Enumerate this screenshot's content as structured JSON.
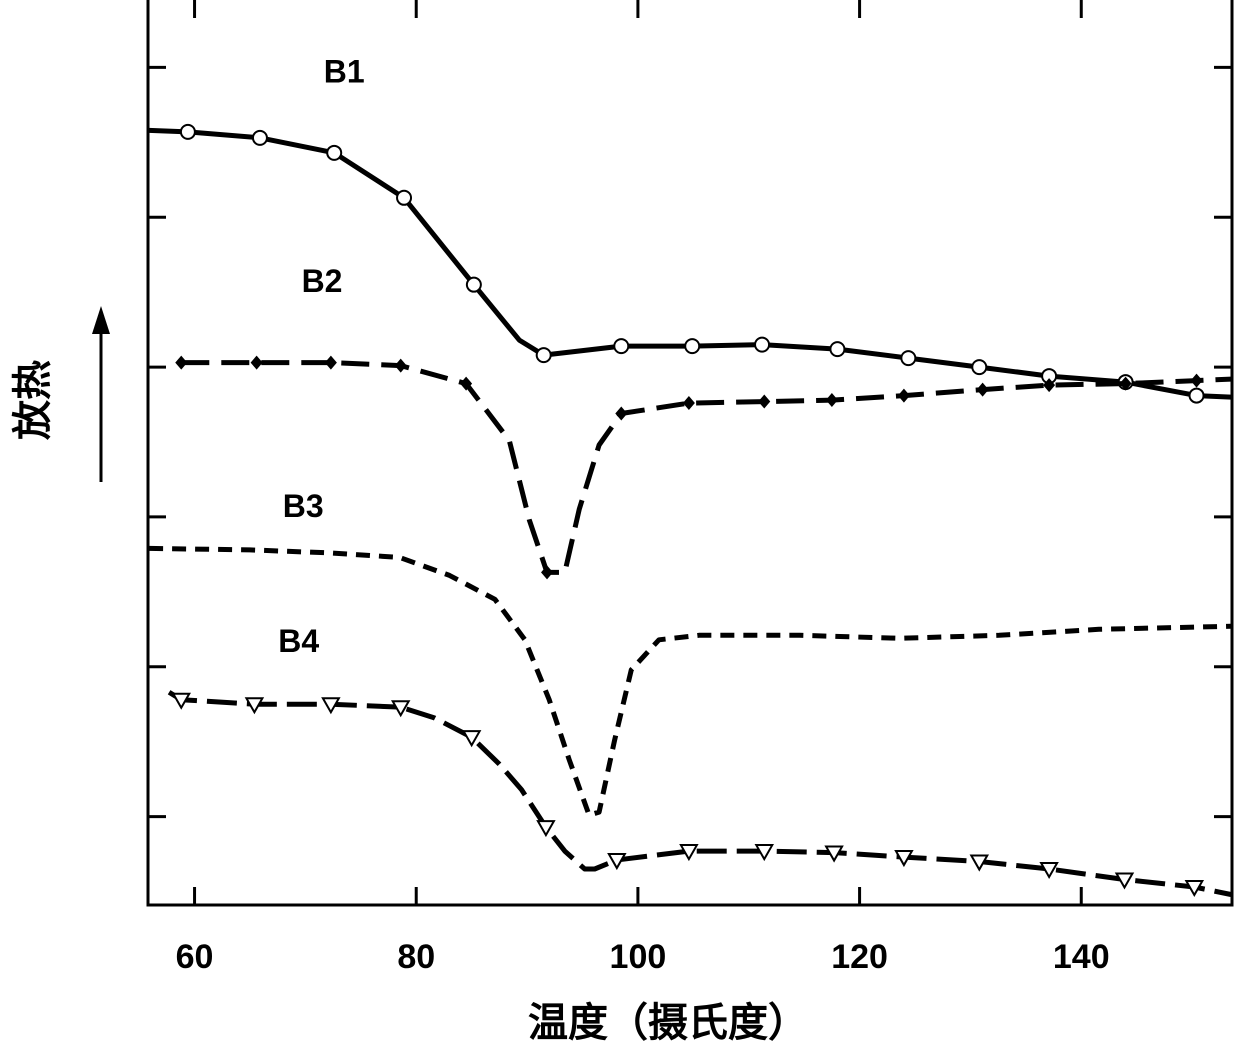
{
  "chart_data": {
    "type": "line",
    "title": "",
    "xlabel": "温度（摄氏度）",
    "ylabel": "放热",
    "xlim": [
      55.8,
      153.6
    ],
    "ylim": [
      -0.59,
      5.45
    ],
    "xticks": [
      60,
      80,
      100,
      120,
      140
    ],
    "xtick_labels": [
      "60",
      "80",
      "100",
      "120",
      "140"
    ],
    "yticks": [
      0,
      1,
      2,
      3,
      4,
      5
    ],
    "ytick_labels_shown": false,
    "grid": false,
    "legend": "none (curves labeled inline)",
    "series": [
      {
        "name": "B1",
        "style": "solid",
        "marker": "open-circle",
        "x": [
          55.9,
          59.4,
          65.9,
          72.6,
          78.9,
          85.2,
          89.3,
          91.5,
          98.5,
          104.9,
          111.2,
          118.0,
          124.4,
          130.8,
          137.1,
          144.0,
          150.4,
          153.5
        ],
        "y": [
          4.58,
          4.57,
          4.53,
          4.43,
          4.13,
          3.55,
          3.18,
          3.08,
          3.14,
          3.14,
          3.15,
          3.12,
          3.06,
          3.0,
          2.94,
          2.9,
          2.81,
          2.8
        ],
        "marker_idx": [
          1,
          2,
          3,
          4,
          5,
          7,
          8,
          9,
          10,
          11,
          12,
          13,
          14,
          15,
          16
        ],
        "label_at": [
          73.5,
          4.9
        ]
      },
      {
        "name": "B2",
        "style": "long-dash",
        "marker": "filled-diamond",
        "x": [
          58.8,
          65.6,
          72.3,
          78.6,
          84.5,
          88.4,
          90.2,
          91.8,
          93.4,
          94.7,
          96.5,
          98.5,
          104.6,
          111.4,
          117.5,
          124.0,
          131.1,
          137.1,
          144.0,
          150.4,
          153.5
        ],
        "y": [
          3.03,
          3.03,
          3.03,
          3.01,
          2.89,
          2.51,
          1.98,
          1.63,
          1.63,
          2.05,
          2.48,
          2.69,
          2.76,
          2.77,
          2.78,
          2.81,
          2.85,
          2.88,
          2.89,
          2.91,
          2.92
        ],
        "marker_idx": [
          0,
          1,
          2,
          3,
          4,
          7,
          11,
          12,
          13,
          14,
          15,
          16,
          17,
          18,
          19
        ],
        "label_at": [
          71.5,
          3.5
        ]
      },
      {
        "name": "B3",
        "style": "short-dash",
        "marker": "none",
        "x": [
          55.9,
          65.0,
          72.2,
          78.5,
          83.0,
          87.1,
          89.8,
          92.0,
          93.8,
          95.6,
          96.5,
          97.9,
          99.4,
          101.9,
          105.5,
          114.6,
          123.6,
          132.6,
          141.6,
          153.5
        ],
        "y": [
          1.79,
          1.78,
          1.76,
          1.73,
          1.61,
          1.45,
          1.18,
          0.78,
          0.38,
          0.01,
          0.03,
          0.51,
          0.98,
          1.18,
          1.21,
          1.21,
          1.19,
          1.21,
          1.25,
          1.27
        ],
        "marker_idx": [],
        "label_at": [
          69.8,
          2.0
        ]
      },
      {
        "name": "B4",
        "style": "dash",
        "marker": "open-triangle-down",
        "x": [
          57.7,
          58.8,
          65.4,
          72.3,
          78.6,
          81.6,
          85.0,
          87.5,
          89.5,
          91.7,
          93.4,
          95.2,
          96.1,
          98.1,
          104.6,
          111.4,
          117.7,
          124.0,
          130.8,
          137.1,
          143.9,
          150.2,
          153.5
        ],
        "y": [
          0.83,
          0.78,
          0.75,
          0.75,
          0.73,
          0.66,
          0.53,
          0.35,
          0.18,
          -0.07,
          -0.23,
          -0.35,
          -0.35,
          -0.29,
          -0.23,
          -0.23,
          -0.24,
          -0.27,
          -0.3,
          -0.35,
          -0.42,
          -0.47,
          -0.52
        ],
        "marker_idx": [
          1,
          2,
          3,
          4,
          6,
          9,
          13,
          14,
          15,
          16,
          17,
          18,
          19,
          20,
          21
        ],
        "label_at": [
          69.4,
          1.1
        ]
      }
    ]
  }
}
